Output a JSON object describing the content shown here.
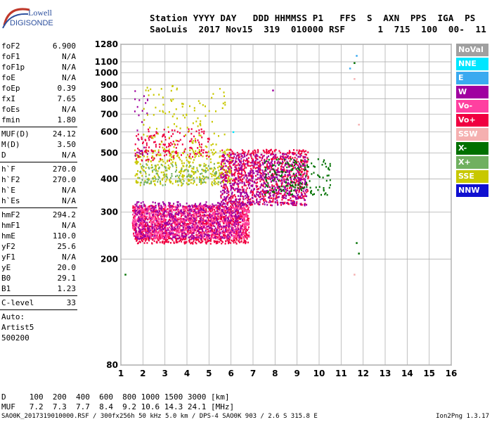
{
  "logo": {
    "line1": "Lowell",
    "line2": "DIGISONDE"
  },
  "header": {
    "line1": "Station YYYY DAY   DDD HHMMSS P1   FFS  S  AXN  PPS  IGA  PS",
    "line2": "SaoLuis  2017 Nov15  319  010000 RSF      1  715  100  00-  11"
  },
  "params_group1": [
    {
      "name": "foF2",
      "value": "6.900"
    },
    {
      "name": "foF1",
      "value": "N/A"
    },
    {
      "name": "foF1p",
      "value": "N/A"
    },
    {
      "name": "foE",
      "value": "N/A"
    },
    {
      "name": "foEp",
      "value": "0.39"
    },
    {
      "name": "fxI",
      "value": "7.65"
    },
    {
      "name": "foEs",
      "value": "N/A"
    },
    {
      "name": "fmin",
      "value": "1.80"
    }
  ],
  "params_group2": [
    {
      "name": "MUF(D)",
      "value": "24.12"
    },
    {
      "name": "M(D)",
      "value": "3.50"
    },
    {
      "name": "D",
      "value": "N/A"
    }
  ],
  "params_group3": [
    {
      "name": "h`F",
      "value": "270.0"
    },
    {
      "name": "h`F2",
      "value": "270.0"
    },
    {
      "name": "h`E",
      "value": "N/A"
    },
    {
      "name": "h`Es",
      "value": "N/A"
    }
  ],
  "params_group4": [
    {
      "name": "hmF2",
      "value": "294.2"
    },
    {
      "name": "hmF1",
      "value": "N/A"
    },
    {
      "name": "hmE",
      "value": "110.0"
    },
    {
      "name": "yF2",
      "value": "25.6"
    },
    {
      "name": "yF1",
      "value": "N/A"
    },
    {
      "name": "yE",
      "value": "20.0"
    },
    {
      "name": "B0",
      "value": "29.1"
    },
    {
      "name": "B1",
      "value": "1.23"
    }
  ],
  "c_level": {
    "name": "C-level",
    "value": "33"
  },
  "auto": [
    "Auto:",
    "Artist5",
    "500200"
  ],
  "legend": [
    {
      "label": "NoVal",
      "color": "#a0a0a0"
    },
    {
      "label": "NNE",
      "color": "#00e6ff"
    },
    {
      "label": "E",
      "color": "#3aaaf0"
    },
    {
      "label": "W",
      "color": "#a000a0"
    },
    {
      "label": "Vo-",
      "color": "#ff40a0"
    },
    {
      "label": "Vo+",
      "color": "#f00040"
    },
    {
      "label": "SSW",
      "color": "#f5b0b0"
    },
    {
      "label": "X-",
      "color": "#007000"
    },
    {
      "label": "X+",
      "color": "#70b060"
    },
    {
      "label": "SSE",
      "color": "#c8c800"
    },
    {
      "label": "NNW",
      "color": "#1010d0"
    }
  ],
  "dtable": {
    "line1": "D     100  200  400  600  800 1000 1500 3000 [km]",
    "line2": "MUF   7.2  7.3  7.7  8.4  9.2 10.6 14.3 24.1 [MHz]"
  },
  "footer": "SAO0K_2017319010000.RSF / 300fx256h 50 kHz 5.0 km / DPS-4 SAO0K 903 / 2.6 S 315.8 E",
  "version": "Ion2Png 1.3.17",
  "chart_data": {
    "type": "scatter",
    "x_ticks": [
      1,
      2,
      3,
      4,
      5,
      6,
      7,
      8,
      9,
      10,
      11,
      12,
      13,
      14,
      15,
      16
    ],
    "y_ticks": [
      80,
      200,
      300,
      400,
      500,
      600,
      700,
      800,
      900,
      1000,
      1100,
      1280
    ],
    "xlim": [
      1,
      16
    ],
    "ylim": [
      80,
      1280
    ],
    "y_scale": "log",
    "grid": true,
    "clusters": [
      {
        "series": "Vo+",
        "f": [
          1.5,
          6.8
        ],
        "h": [
          230,
          320
        ],
        "density": 0.9
      },
      {
        "series": "Vo-",
        "f": [
          1.5,
          6.8
        ],
        "h": [
          240,
          320
        ],
        "density": 0.7
      },
      {
        "series": "W",
        "f": [
          1.6,
          6.5
        ],
        "h": [
          240,
          330
        ],
        "density": 0.4
      },
      {
        "series": "Vo+",
        "f": [
          5.5,
          9.5
        ],
        "h": [
          320,
          520
        ],
        "density": 0.5
      },
      {
        "series": "W",
        "f": [
          5.5,
          9.4
        ],
        "h": [
          320,
          500
        ],
        "density": 0.4
      },
      {
        "series": "X-",
        "f": [
          7.5,
          10.5
        ],
        "h": [
          350,
          480
        ],
        "density": 0.2
      },
      {
        "series": "SSE",
        "f": [
          1.6,
          6.0
        ],
        "h": [
          380,
          520
        ],
        "density": 0.3
      },
      {
        "series": "X+",
        "f": [
          1.8,
          5.5
        ],
        "h": [
          380,
          460
        ],
        "density": 0.2
      },
      {
        "series": "Vo+",
        "f": [
          1.6,
          5.0
        ],
        "h": [
          470,
          620
        ],
        "density": 0.2
      },
      {
        "series": "SSE",
        "f": [
          2.0,
          5.8
        ],
        "h": [
          520,
          900
        ],
        "density": 0.06
      },
      {
        "series": "W",
        "f": [
          1.6,
          2.2
        ],
        "h": [
          480,
          900
        ],
        "density": 0.08
      }
    ],
    "isolated_points": [
      {
        "f": 11.7,
        "h": 1160,
        "series": "E"
      },
      {
        "f": 11.6,
        "h": 1090,
        "series": "X-"
      },
      {
        "f": 11.4,
        "h": 1040,
        "series": "E"
      },
      {
        "f": 11.6,
        "h": 950,
        "series": "SSW"
      },
      {
        "f": 11.8,
        "h": 640,
        "series": "SSW"
      },
      {
        "f": 11.7,
        "h": 230,
        "series": "X-"
      },
      {
        "f": 11.8,
        "h": 210,
        "series": "X-"
      },
      {
        "f": 11.6,
        "h": 175,
        "series": "SSW"
      },
      {
        "f": 1.2,
        "h": 175,
        "series": "X-"
      },
      {
        "f": 7.9,
        "h": 860,
        "series": "W"
      },
      {
        "f": 6.1,
        "h": 600,
        "series": "NNE"
      }
    ]
  }
}
